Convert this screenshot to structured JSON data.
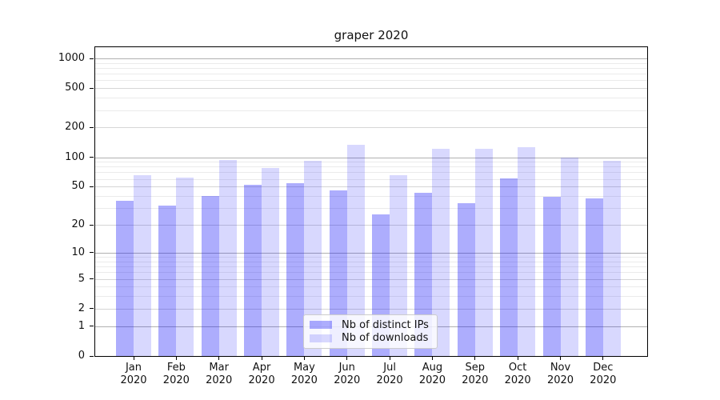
{
  "figure": {
    "title": "graper 2020"
  },
  "chart_data": {
    "type": "bar",
    "title": "graper 2020",
    "categories": [
      "Jan",
      "Feb",
      "Mar",
      "Apr",
      "May",
      "Jun",
      "Jul",
      "Aug",
      "Sep",
      "Oct",
      "Nov",
      "Dec"
    ],
    "category_year": "2020",
    "series": [
      {
        "name": "Nb of distinct IPs",
        "color": "rgba(10,10,250,0.335)",
        "values": [
          36,
          32,
          40,
          52,
          54,
          46,
          26,
          43,
          34,
          61,
          39,
          38
        ]
      },
      {
        "name": "Nb of downloads",
        "color": "rgba(10,10,250,0.16)",
        "values": [
          66,
          62,
          94,
          78,
          92,
          134,
          65,
          121,
          121,
          127,
          100,
          92
        ]
      }
    ],
    "yscale": "log1p",
    "ylim": [
      0,
      1000
    ],
    "yticks": [
      0,
      1,
      2,
      5,
      10,
      20,
      50,
      100,
      200,
      500,
      1000
    ],
    "ytick_labels": [
      "0",
      "1",
      "2",
      "5",
      "10",
      "20",
      "50",
      "100",
      "200",
      "500",
      "1000"
    ],
    "yminor_ticks": [
      3,
      4,
      6,
      7,
      8,
      9,
      30,
      40,
      60,
      70,
      80,
      90,
      300,
      400,
      600,
      700,
      800,
      900
    ],
    "grid": true,
    "legend_position": "lower center"
  },
  "colors": {
    "bar_ips": "#aaaaf9",
    "bar_downloads": "#d9d9fb",
    "grid_decade": "#b0b0b0",
    "grid_mid": "#d6d6d6",
    "grid_minor": "#ebebeb",
    "axis": "#000000"
  }
}
